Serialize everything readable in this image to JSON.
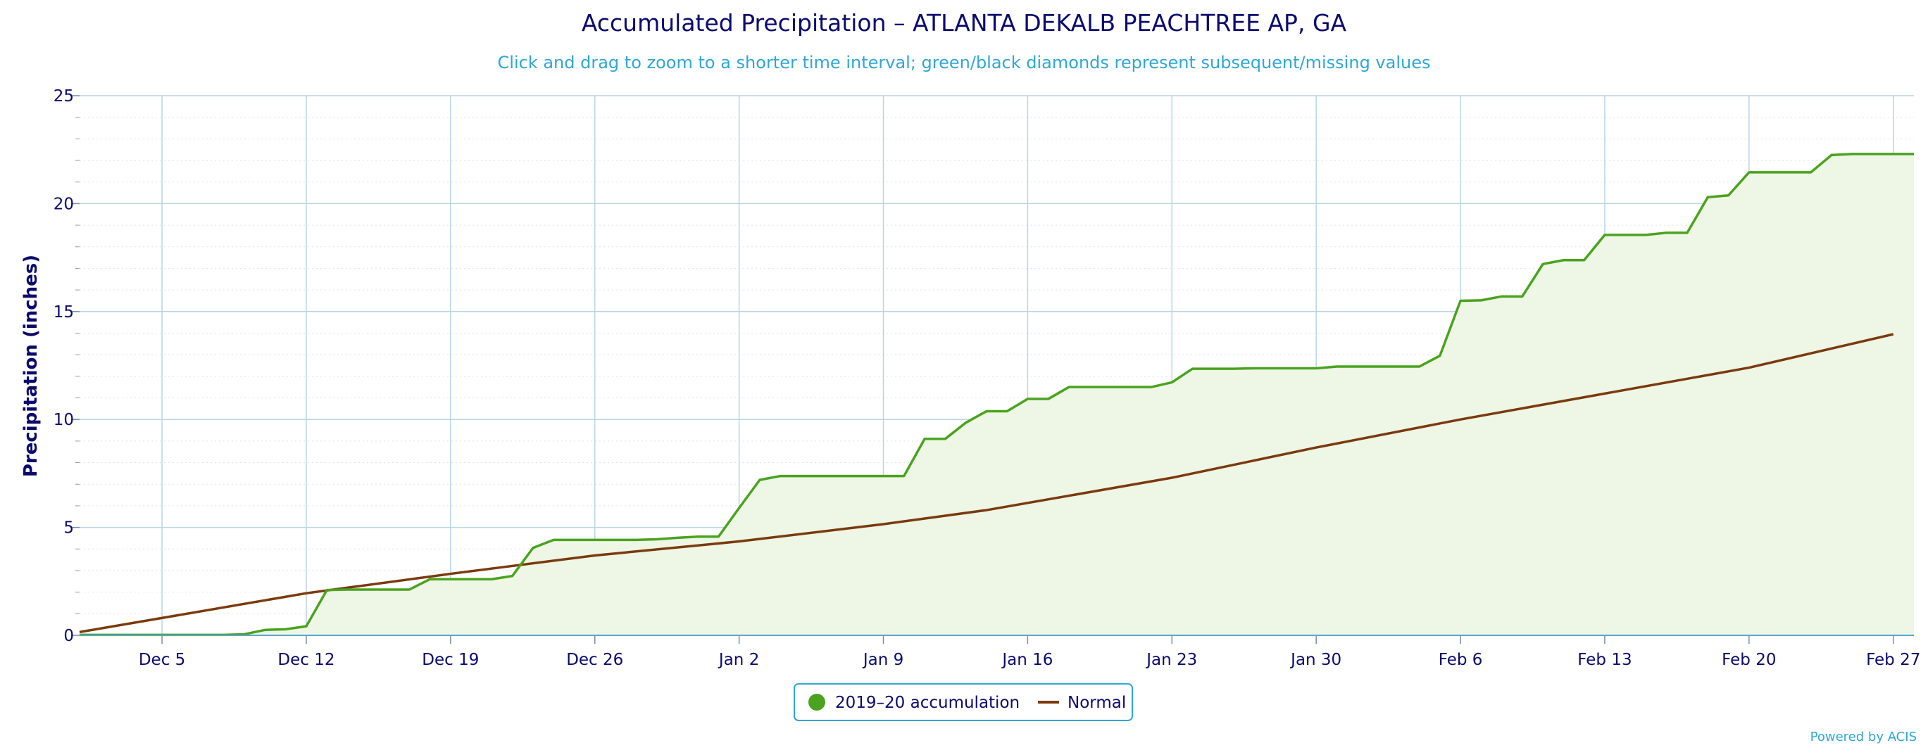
{
  "chart_data": {
    "type": "area",
    "title": "Accumulated Precipitation – ATLANTA DEKALB PEACHTREE AP, GA",
    "subtitle": "Click and drag to zoom to a shorter time interval; green/black diamonds represent subsequent/missing values",
    "xlabel": "",
    "ylabel": "Precipitation (inches)",
    "ylim": [
      0,
      25
    ],
    "yticks": [
      "0",
      "5",
      "10",
      "15",
      "20",
      "25"
    ],
    "x_range_days": [
      0,
      89
    ],
    "xticks": [
      {
        "day": 4,
        "label": "Dec 5"
      },
      {
        "day": 11,
        "label": "Dec 12"
      },
      {
        "day": 18,
        "label": "Dec 19"
      },
      {
        "day": 25,
        "label": "Dec 26"
      },
      {
        "day": 32,
        "label": "Jan 2"
      },
      {
        "day": 39,
        "label": "Jan 9"
      },
      {
        "day": 46,
        "label": "Jan 16"
      },
      {
        "day": 53,
        "label": "Jan 23"
      },
      {
        "day": 60,
        "label": "Jan 30"
      },
      {
        "day": 67,
        "label": "Feb 6"
      },
      {
        "day": 74,
        "label": "Feb 13"
      },
      {
        "day": 81,
        "label": "Feb 20"
      },
      {
        "day": 88,
        "label": "Feb 27"
      }
    ],
    "grid": true,
    "legend_placement": "bottom-center",
    "series": [
      {
        "name": "2019-20 accumulation",
        "color": "#4aa31e",
        "fill": "#eef6e6",
        "points": [
          [
            0,
            0.02
          ],
          [
            1,
            0.02
          ],
          [
            2,
            0.02
          ],
          [
            3,
            0.02
          ],
          [
            4,
            0.02
          ],
          [
            5,
            0.02
          ],
          [
            6,
            0.02
          ],
          [
            7,
            0.02
          ],
          [
            8,
            0.05
          ],
          [
            9,
            0.25
          ],
          [
            10,
            0.28
          ],
          [
            11,
            0.42
          ],
          [
            12,
            2.1
          ],
          [
            13,
            2.12
          ],
          [
            14,
            2.12
          ],
          [
            15,
            2.12
          ],
          [
            16,
            2.12
          ],
          [
            17,
            2.6
          ],
          [
            18,
            2.6
          ],
          [
            19,
            2.6
          ],
          [
            20,
            2.6
          ],
          [
            21,
            2.75
          ],
          [
            22,
            4.05
          ],
          [
            23,
            4.42
          ],
          [
            24,
            4.42
          ],
          [
            25,
            4.42
          ],
          [
            26,
            4.42
          ],
          [
            27,
            4.42
          ],
          [
            28,
            4.45
          ],
          [
            29,
            4.52
          ],
          [
            30,
            4.57
          ],
          [
            31,
            4.57
          ],
          [
            32,
            5.9
          ],
          [
            33,
            7.2
          ],
          [
            34,
            7.38
          ],
          [
            35,
            7.38
          ],
          [
            36,
            7.38
          ],
          [
            37,
            7.38
          ],
          [
            38,
            7.38
          ],
          [
            39,
            7.38
          ],
          [
            40,
            7.38
          ],
          [
            41,
            9.1
          ],
          [
            42,
            9.1
          ],
          [
            43,
            9.85
          ],
          [
            44,
            10.38
          ],
          [
            45,
            10.38
          ],
          [
            46,
            10.95
          ],
          [
            47,
            10.95
          ],
          [
            48,
            11.5
          ],
          [
            49,
            11.5
          ],
          [
            50,
            11.5
          ],
          [
            51,
            11.5
          ],
          [
            52,
            11.5
          ],
          [
            53,
            11.72
          ],
          [
            54,
            12.35
          ],
          [
            55,
            12.35
          ],
          [
            56,
            12.35
          ],
          [
            57,
            12.37
          ],
          [
            58,
            12.37
          ],
          [
            59,
            12.37
          ],
          [
            60,
            12.37
          ],
          [
            61,
            12.45
          ],
          [
            62,
            12.45
          ],
          [
            63,
            12.45
          ],
          [
            64,
            12.45
          ],
          [
            65,
            12.45
          ],
          [
            66,
            12.95
          ],
          [
            67,
            15.5
          ],
          [
            68,
            15.52
          ],
          [
            69,
            15.7
          ],
          [
            70,
            15.7
          ],
          [
            71,
            17.2
          ],
          [
            72,
            17.38
          ],
          [
            73,
            17.38
          ],
          [
            74,
            18.55
          ],
          [
            75,
            18.55
          ],
          [
            76,
            18.55
          ],
          [
            77,
            18.65
          ],
          [
            78,
            18.65
          ],
          [
            79,
            20.3
          ],
          [
            80,
            20.38
          ],
          [
            81,
            21.45
          ],
          [
            82,
            21.45
          ],
          [
            83,
            21.45
          ],
          [
            84,
            21.45
          ],
          [
            85,
            22.25
          ],
          [
            86,
            22.3
          ],
          [
            87,
            22.3
          ],
          [
            88,
            22.3
          ],
          [
            89,
            22.3
          ]
        ]
      },
      {
        "name": "Normal",
        "color": "#7b3a0e",
        "points": [
          [
            0,
            0.15
          ],
          [
            11,
            1.95
          ],
          [
            18,
            2.85
          ],
          [
            25,
            3.7
          ],
          [
            32,
            4.35
          ],
          [
            39,
            5.15
          ],
          [
            44,
            5.8
          ],
          [
            53,
            7.3
          ],
          [
            60,
            8.7
          ],
          [
            67,
            10.0
          ],
          [
            74,
            11.2
          ],
          [
            81,
            12.4
          ],
          [
            88,
            13.95
          ]
        ]
      }
    ]
  },
  "legend": {
    "items": [
      {
        "label": "2019–20 accumulation",
        "color": "#4aa31e"
      },
      {
        "label": "Normal",
        "color": "#7b3a0e"
      }
    ]
  },
  "credit": "Powered by ACIS"
}
